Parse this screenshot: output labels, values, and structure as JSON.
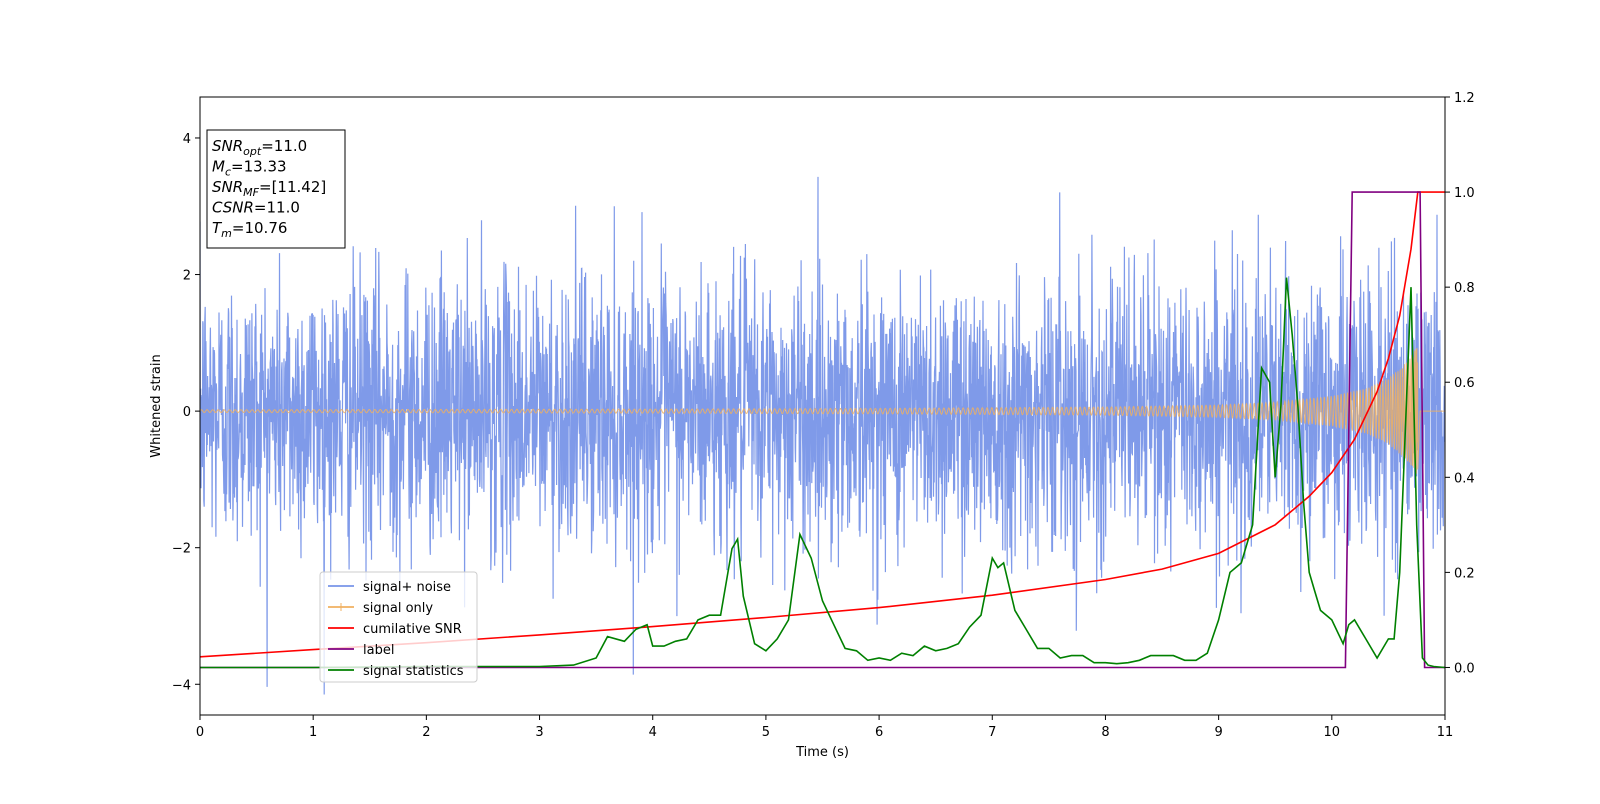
{
  "chart_data": {
    "type": "line",
    "xlabel": "Time (s)",
    "ylabel": "Whitened strain",
    "xlim": [
      0,
      11
    ],
    "ylim": [
      -4.45,
      4.6
    ],
    "y2lim": [
      -0.1,
      1.2
    ],
    "x_ticks": [
      0,
      1,
      2,
      3,
      4,
      5,
      6,
      7,
      8,
      9,
      10,
      11
    ],
    "y_ticks": [
      -4,
      -2,
      0,
      2,
      4
    ],
    "y2_ticks": [
      0.0,
      0.2,
      0.4,
      0.6,
      0.8,
      1.0,
      1.2
    ],
    "y2_tick_labels": [
      "0.0",
      "0.2",
      "0.4",
      "0.6",
      "0.8",
      "1.0",
      "1.2"
    ],
    "grid": false,
    "legend_position": "lower-left",
    "info_box": {
      "position": "top-left",
      "lines": [
        {
          "main": "SNR",
          "sub": "opt",
          "rest": "=11.0"
        },
        {
          "main": "M",
          "sub": "c",
          "rest": "=13.33"
        },
        {
          "main": "SNR",
          "sub": "MF",
          "rest": "=[11.42]"
        },
        {
          "main": "CSNR",
          "sub": "",
          "rest": "=11.0"
        },
        {
          "main": "T",
          "sub": "m",
          "rest": "=10.76"
        }
      ]
    },
    "series": [
      {
        "name": "signal+ noise",
        "axis": "left",
        "color": "#7895e8",
        "style": "noise",
        "amplitude": 1.0,
        "spike_max": 4.15,
        "x_range": [
          0,
          11
        ]
      },
      {
        "name": "signal only",
        "axis": "left",
        "color": "#f0b060",
        "style": "chirp",
        "chirp_time": 10.76,
        "envelope": {
          "x": [
            0,
            2,
            4,
            6,
            8,
            9,
            9.5,
            10,
            10.3,
            10.5,
            10.65,
            10.76
          ],
          "y": [
            0.02,
            0.025,
            0.03,
            0.04,
            0.06,
            0.09,
            0.13,
            0.22,
            0.33,
            0.48,
            0.7,
            0.95
          ]
        }
      },
      {
        "name": "cumilative SNR",
        "axis": "right",
        "color": "#ff0000",
        "x": [
          0,
          1,
          2,
          3,
          4,
          5,
          6,
          7,
          8,
          8.5,
          9,
          9.5,
          9.8,
          10,
          10.2,
          10.4,
          10.5,
          10.6,
          10.7,
          10.76,
          11
        ],
        "y": [
          0.0225,
          0.0375,
          0.052,
          0.0685,
          0.086,
          0.105,
          0.126,
          0.152,
          0.185,
          0.207,
          0.24,
          0.3,
          0.36,
          0.41,
          0.48,
          0.58,
          0.65,
          0.74,
          0.88,
          1.0,
          1.0
        ]
      },
      {
        "name": "label",
        "axis": "right",
        "color": "#800080",
        "x": [
          0,
          10.12,
          10.18,
          10.78,
          10.82,
          11
        ],
        "y": [
          0,
          0,
          1,
          1,
          0,
          0
        ]
      },
      {
        "name": "signal statistics",
        "axis": "right",
        "color": "#008000",
        "x": [
          0,
          1,
          2,
          3,
          3.3,
          3.5,
          3.6,
          3.75,
          3.85,
          3.95,
          4.0,
          4.1,
          4.2,
          4.3,
          4.4,
          4.5,
          4.6,
          4.7,
          4.75,
          4.8,
          4.9,
          5.0,
          5.1,
          5.2,
          5.3,
          5.4,
          5.5,
          5.6,
          5.7,
          5.8,
          5.9,
          6.0,
          6.1,
          6.2,
          6.3,
          6.4,
          6.5,
          6.6,
          6.7,
          6.8,
          6.9,
          7.0,
          7.05,
          7.1,
          7.2,
          7.3,
          7.4,
          7.5,
          7.6,
          7.7,
          7.8,
          7.9,
          8.0,
          8.1,
          8.2,
          8.3,
          8.4,
          8.5,
          8.6,
          8.7,
          8.8,
          8.9,
          9.0,
          9.1,
          9.2,
          9.3,
          9.38,
          9.45,
          9.5,
          9.55,
          9.6,
          9.65,
          9.7,
          9.75,
          9.8,
          9.85,
          9.9,
          10.0,
          10.1,
          10.15,
          10.2,
          10.3,
          10.4,
          10.5,
          10.55,
          10.6,
          10.7,
          10.75,
          10.8,
          10.85,
          10.9,
          11
        ],
        "y": [
          0.0,
          0.0,
          0.002,
          0.002,
          0.005,
          0.02,
          0.065,
          0.055,
          0.08,
          0.09,
          0.045,
          0.045,
          0.055,
          0.06,
          0.1,
          0.11,
          0.11,
          0.25,
          0.27,
          0.15,
          0.05,
          0.035,
          0.06,
          0.1,
          0.28,
          0.23,
          0.14,
          0.09,
          0.04,
          0.035,
          0.015,
          0.02,
          0.015,
          0.03,
          0.025,
          0.045,
          0.035,
          0.04,
          0.05,
          0.085,
          0.11,
          0.23,
          0.21,
          0.22,
          0.12,
          0.08,
          0.04,
          0.04,
          0.02,
          0.025,
          0.025,
          0.01,
          0.01,
          0.008,
          0.01,
          0.015,
          0.025,
          0.025,
          0.025,
          0.015,
          0.015,
          0.03,
          0.1,
          0.2,
          0.22,
          0.3,
          0.63,
          0.6,
          0.4,
          0.55,
          0.82,
          0.7,
          0.55,
          0.35,
          0.2,
          0.16,
          0.12,
          0.1,
          0.05,
          0.09,
          0.1,
          0.06,
          0.02,
          0.06,
          0.06,
          0.2,
          0.8,
          0.3,
          0.02,
          0.005,
          0.002,
          0.0
        ]
      }
    ]
  }
}
